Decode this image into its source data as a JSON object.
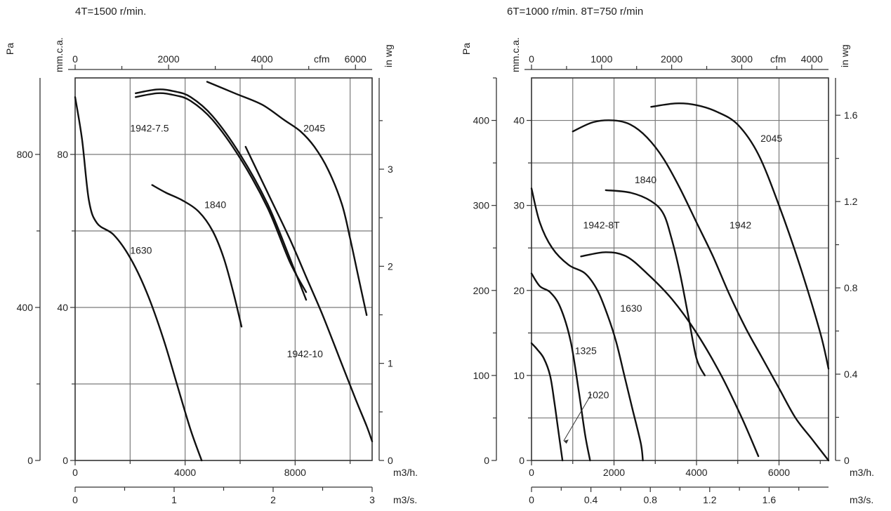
{
  "headings": {
    "left": "4T=1500 r/min.",
    "right": "6T=1000 r/min.    8T=750 r/min"
  },
  "chart_data": [
    {
      "type": "line",
      "title": "4T=1500 r/min.",
      "x_units": [
        "m3/h.",
        "m3/s.",
        "cfm"
      ],
      "y_units": [
        "Pa",
        "mm.c.a.",
        "in wg"
      ],
      "xlim_m3h": [
        0,
        10800
      ],
      "ylim_mmca": [
        0,
        100
      ],
      "grid": true,
      "ticks": {
        "m3h": [
          "0",
          "4000",
          "8000"
        ],
        "m3h_values": [
          0,
          4000,
          8000
        ],
        "m3s": [
          "0",
          "1",
          "2",
          "3"
        ],
        "m3s_values": [
          0,
          1,
          2,
          3
        ],
        "cfm": [
          "0",
          "2000",
          "4000",
          "6000"
        ],
        "cfm_values": [
          0,
          2000,
          4000,
          6000
        ],
        "pa": [
          "0",
          "400",
          "800"
        ],
        "pa_values": [
          0,
          400,
          800
        ],
        "mmca": [
          "0",
          "40",
          "80"
        ],
        "mmca_values": [
          0,
          40,
          80
        ],
        "inwg": [
          "0",
          "1",
          "2",
          "3"
        ],
        "inwg_values": [
          0,
          1,
          2,
          3
        ]
      },
      "series": [
        {
          "name": "1630",
          "x": [
            0,
            250,
            500,
            800,
            1400,
            2000,
            2600,
            3200,
            3700,
            4200,
            4600
          ],
          "y": [
            95,
            84,
            68,
            62,
            59,
            53,
            44,
            32,
            20,
            8,
            0
          ]
        },
        {
          "name": "1840",
          "x": [
            2800,
            3300,
            3900,
            4500,
            5000,
            5400,
            5750,
            6050
          ],
          "y": [
            72,
            70,
            68,
            65,
            60,
            53,
            44,
            35
          ]
        },
        {
          "name": "1942-7.5",
          "x": [
            2200,
            3000,
            3600,
            4200,
            5000,
            6000,
            7000,
            7800,
            8400
          ],
          "y": [
            96,
            97,
            96.5,
            95,
            90,
            80,
            67,
            53,
            42
          ]
        },
        {
          "name": "1942-10",
          "x": [
            2200,
            3000,
            3600,
            4200,
            5000,
            6000,
            7000,
            7800,
            8400
          ],
          "y": [
            95,
            96,
            95.5,
            94,
            89,
            79,
            66,
            52,
            44
          ]
        },
        {
          "name": "2045",
          "x": [
            4800,
            5800,
            6800,
            7600,
            8200,
            8700,
            9200,
            9700,
            10000,
            10300,
            10600
          ],
          "y": [
            99,
            96,
            93,
            89,
            86,
            82,
            76,
            67,
            58,
            48,
            38
          ]
        },
        {
          "name": "",
          "x": [
            6200,
            7000,
            7800,
            8400,
            9000,
            9600,
            10200,
            10600,
            10800
          ],
          "y": [
            82,
            70,
            58,
            48,
            38,
            27,
            16,
            9,
            5
          ]
        }
      ],
      "labels": [
        {
          "text": "1942-7.5",
          "x": 2000,
          "y": 86
        },
        {
          "text": "2045",
          "x": 8300,
          "y": 86
        },
        {
          "text": "1840",
          "x": 4700,
          "y": 66
        },
        {
          "text": "1630",
          "x": 2000,
          "y": 54
        },
        {
          "text": "1942-10",
          "x": 7700,
          "y": 27
        }
      ]
    },
    {
      "type": "line",
      "title": "6T=1000 r/min.    8T=750 r/min",
      "x_units": [
        "m3/h.",
        "m3/s.",
        "cfm"
      ],
      "y_units": [
        "Pa",
        "mm.c.a.",
        "in wg"
      ],
      "xlim_m3h": [
        0,
        7200
      ],
      "ylim_mmca": [
        0,
        45
      ],
      "grid": true,
      "ticks": {
        "m3h": [
          "0",
          "2000",
          "4000",
          "6000"
        ],
        "m3h_values": [
          0,
          2000,
          4000,
          6000
        ],
        "m3s": [
          "0",
          "0.4",
          "0.8",
          "1.2",
          "1.6"
        ],
        "m3s_values": [
          0,
          0.4,
          0.8,
          1.2,
          1.6
        ],
        "cfm": [
          "0",
          "1000",
          "2000",
          "3000",
          "4000"
        ],
        "cfm_values": [
          0,
          1000,
          2000,
          3000,
          4000
        ],
        "pa": [
          "0",
          "100",
          "200",
          "300",
          "400"
        ],
        "pa_values": [
          0,
          100,
          200,
          300,
          400
        ],
        "mmca": [
          "0",
          "10",
          "20",
          "30",
          "40"
        ],
        "mmca_values": [
          0,
          10,
          20,
          30,
          40
        ],
        "inwg": [
          "0",
          "0.4",
          "0.8",
          "1.2",
          "1.6"
        ],
        "inwg_values": [
          0,
          0.4,
          0.8,
          1.2,
          1.6
        ]
      },
      "series": [
        {
          "name": "1020",
          "x": [
            0,
            150,
            300,
            450,
            550,
            650,
            750
          ],
          "y": [
            13.8,
            13,
            12,
            10,
            7,
            3.5,
            0
          ]
        },
        {
          "name": "1325",
          "x": [
            0,
            200,
            450,
            700,
            950,
            1150,
            1300,
            1420
          ],
          "y": [
            22,
            20.5,
            19.8,
            18,
            14,
            8,
            3,
            0
          ]
        },
        {
          "name": "1942-8T",
          "x": [
            0,
            200,
            500,
            900,
            1300,
            1600,
            1850,
            2050,
            2250,
            2450,
            2650,
            2700
          ],
          "y": [
            32,
            28,
            25,
            23,
            22,
            20,
            17,
            14,
            10,
            6,
            2,
            0
          ]
        },
        {
          "name": "1630",
          "x": [
            1200,
            1800,
            2300,
            2800,
            3400,
            4000,
            4600,
            5100,
            5500
          ],
          "y": [
            24,
            24.5,
            24,
            22,
            19,
            15,
            10,
            5,
            0.5
          ]
        },
        {
          "name": "1840",
          "x": [
            1800,
            2400,
            2900,
            3200,
            3400,
            3600,
            3800,
            4000,
            4200
          ],
          "y": [
            31.8,
            31.5,
            30.5,
            29,
            26,
            22,
            17,
            12,
            10
          ]
        },
        {
          "name": "1942",
          "x": [
            1000,
            1500,
            2000,
            2400,
            2800,
            3200,
            3600,
            4000,
            4400,
            4800,
            5200,
            5600,
            6000,
            6400,
            6800,
            7200
          ],
          "y": [
            38.7,
            39.8,
            40,
            39.5,
            38,
            35.5,
            32,
            28,
            24,
            19.5,
            15.5,
            12,
            8.5,
            5,
            2.5,
            0
          ]
        },
        {
          "name": "2045",
          "x": [
            2900,
            3500,
            4000,
            4500,
            5000,
            5500,
            6000,
            6500,
            7000,
            7200
          ],
          "y": [
            41.6,
            42,
            41.8,
            41,
            39.5,
            36,
            30,
            23,
            15,
            10.8
          ]
        }
      ],
      "labels": [
        {
          "text": "2045",
          "x": 5550,
          "y": 37.5
        },
        {
          "text": "1840",
          "x": 2500,
          "y": 32.6
        },
        {
          "text": "1942-8T",
          "x": 1250,
          "y": 27.3
        },
        {
          "text": "1942",
          "x": 4800,
          "y": 27.3
        },
        {
          "text": "1630",
          "x": 2150,
          "y": 17.5
        },
        {
          "text": "1325",
          "x": 1050,
          "y": 12.5
        },
        {
          "text": "1020",
          "x": 1350,
          "y": 7.3
        }
      ]
    }
  ]
}
